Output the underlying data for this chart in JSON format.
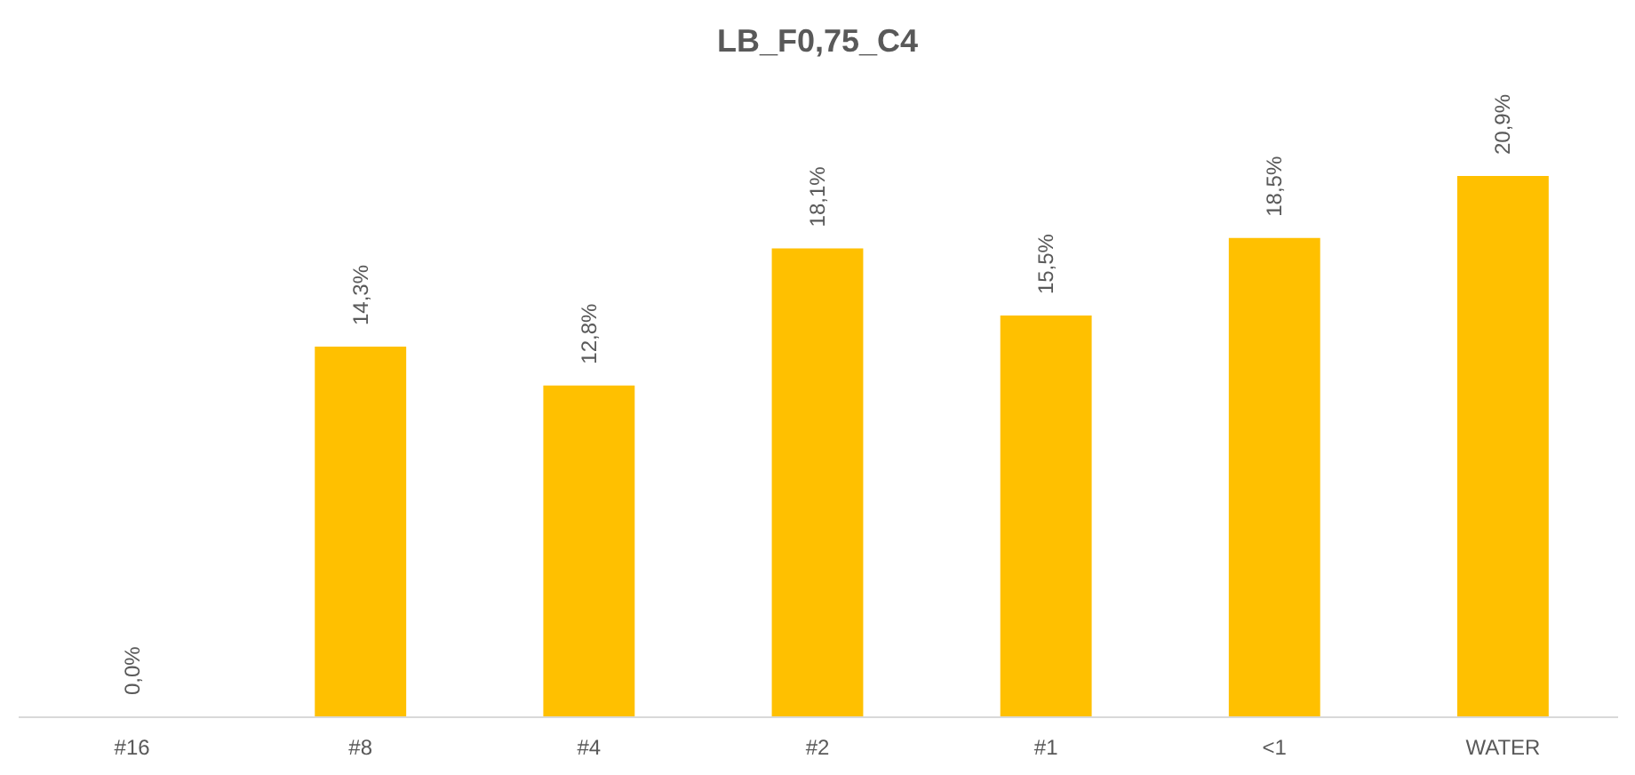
{
  "chart_data": {
    "type": "bar",
    "title": "LB_F0,75_C4",
    "categories": [
      "#16",
      "#8",
      "#4",
      "#2",
      "#1",
      "<1",
      "WATER"
    ],
    "values": [
      0.0,
      14.3,
      12.8,
      18.1,
      15.5,
      18.5,
      20.9
    ],
    "value_labels": [
      "0,0%",
      "14,3%",
      "12,8%",
      "18,1%",
      "15,5%",
      "18,5%",
      "20,9%"
    ],
    "color": "#ffc000",
    "grid": false
  }
}
